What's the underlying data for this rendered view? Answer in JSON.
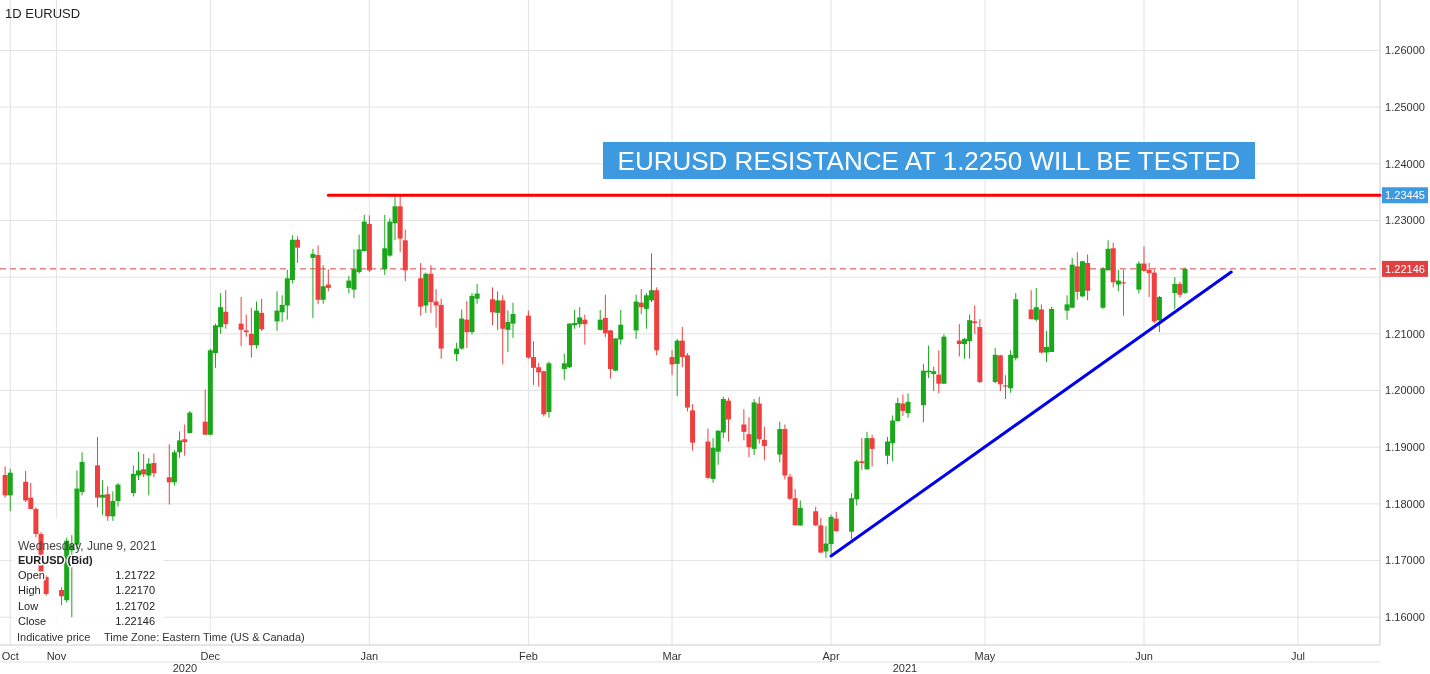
{
  "chart_data": {
    "type": "candlestick",
    "title": "1D EURUSD",
    "xlim": [
      "2020-10-21",
      "2021-07-17"
    ],
    "xticks": [
      {
        "value": "2020-10-23",
        "label": "Oct"
      },
      {
        "value": "2020-11-01",
        "label": "Nov"
      },
      {
        "value": "2020-12-01",
        "label": "Dec"
      },
      {
        "value": "2021-01-01",
        "label": "Jan"
      },
      {
        "value": "2021-02-01",
        "label": "Feb"
      },
      {
        "value": "2021-03-01",
        "label": "Mar"
      },
      {
        "value": "2021-04-01",
        "label": "Apr"
      },
      {
        "value": "2021-05-01",
        "label": "May"
      },
      {
        "value": "2021-06-01",
        "label": "Jun"
      },
      {
        "value": "2021-07-01",
        "label": "Jul"
      }
    ],
    "ylim": [
      1.1551,
      1.2689
    ],
    "yticks": [
      {
        "value": 1.16,
        "label": "1.16000"
      },
      {
        "value": 1.17,
        "label": "1.17000"
      },
      {
        "value": 1.18,
        "label": "1.18000"
      },
      {
        "value": 1.19,
        "label": "1.19000"
      },
      {
        "value": 1.2,
        "label": "1.20000"
      },
      {
        "value": 1.21,
        "label": "1.21000"
      },
      {
        "value": 1.22,
        "label": null
      },
      {
        "value": 1.23,
        "label": "1.23000"
      },
      {
        "value": 1.24,
        "label": "1.24000"
      },
      {
        "value": 1.25,
        "label": "1.25000"
      },
      {
        "value": 1.26,
        "label": "1.26000"
      }
    ],
    "grid": true,
    "x": [
      "2020-10-22",
      "2020-10-23",
      "2020-10-26",
      "2020-10-27",
      "2020-10-28",
      "2020-10-29",
      "2020-10-30",
      "2020-11-02",
      "2020-11-03",
      "2020-11-04",
      "2020-11-05",
      "2020-11-06",
      "2020-11-09",
      "2020-11-10",
      "2020-11-11",
      "2020-11-12",
      "2020-11-13",
      "2020-11-16",
      "2020-11-17",
      "2020-11-18",
      "2020-11-19",
      "2020-11-20",
      "2020-11-23",
      "2020-11-24",
      "2020-11-25",
      "2020-11-26",
      "2020-11-27",
      "2020-11-30",
      "2020-12-01",
      "2020-12-02",
      "2020-12-03",
      "2020-12-04",
      "2020-12-07",
      "2020-12-08",
      "2020-12-09",
      "2020-12-10",
      "2020-12-11",
      "2020-12-14",
      "2020-12-15",
      "2020-12-16",
      "2020-12-17",
      "2020-12-18",
      "2020-12-21",
      "2020-12-22",
      "2020-12-23",
      "2020-12-24",
      "2020-12-28",
      "2020-12-29",
      "2020-12-30",
      "2020-12-31",
      "2021-01-01",
      "2021-01-04",
      "2021-01-05",
      "2021-01-06",
      "2021-01-07",
      "2021-01-08",
      "2021-01-11",
      "2021-01-12",
      "2021-01-13",
      "2021-01-14",
      "2021-01-15",
      "2021-01-18",
      "2021-01-19",
      "2021-01-20",
      "2021-01-21",
      "2021-01-22",
      "2021-01-25",
      "2021-01-26",
      "2021-01-27",
      "2021-01-28",
      "2021-01-29",
      "2021-02-01",
      "2021-02-02",
      "2021-02-03",
      "2021-02-04",
      "2021-02-05",
      "2021-02-08",
      "2021-02-09",
      "2021-02-10",
      "2021-02-11",
      "2021-02-12",
      "2021-02-15",
      "2021-02-16",
      "2021-02-17",
      "2021-02-18",
      "2021-02-19",
      "2021-02-22",
      "2021-02-23",
      "2021-02-24",
      "2021-02-25",
      "2021-02-26",
      "2021-03-01",
      "2021-03-02",
      "2021-03-03",
      "2021-03-04",
      "2021-03-05",
      "2021-03-08",
      "2021-03-09",
      "2021-03-10",
      "2021-03-11",
      "2021-03-12",
      "2021-03-15",
      "2021-03-16",
      "2021-03-17",
      "2021-03-18",
      "2021-03-19",
      "2021-03-22",
      "2021-03-23",
      "2021-03-24",
      "2021-03-25",
      "2021-03-26",
      "2021-03-29",
      "2021-03-30",
      "2021-03-31",
      "2021-04-01",
      "2021-04-02",
      "2021-04-05",
      "2021-04-06",
      "2021-04-07",
      "2021-04-08",
      "2021-04-09",
      "2021-04-12",
      "2021-04-13",
      "2021-04-14",
      "2021-04-15",
      "2021-04-16",
      "2021-04-19",
      "2021-04-20",
      "2021-04-21",
      "2021-04-22",
      "2021-04-23",
      "2021-04-26",
      "2021-04-27",
      "2021-04-28",
      "2021-04-29",
      "2021-04-30",
      "2021-05-03",
      "2021-05-04",
      "2021-05-05",
      "2021-05-06",
      "2021-05-07",
      "2021-05-10",
      "2021-05-11",
      "2021-05-12",
      "2021-05-13",
      "2021-05-14",
      "2021-05-17",
      "2021-05-18",
      "2021-05-19",
      "2021-05-20",
      "2021-05-21",
      "2021-05-24",
      "2021-05-25",
      "2021-05-26",
      "2021-05-27",
      "2021-05-28",
      "2021-05-31",
      "2021-06-01",
      "2021-06-02",
      "2021-06-03",
      "2021-06-04",
      "2021-06-07",
      "2021-06-08",
      "2021-06-09"
    ],
    "ohlc": [
      [
        1.1851,
        1.1866,
        1.1811,
        1.1815
      ],
      [
        1.1815,
        1.1862,
        1.1787,
        1.1855
      ],
      [
        1.1839,
        1.1858,
        1.1803,
        1.1806
      ],
      [
        1.1811,
        1.1837,
        1.1791,
        1.1791
      ],
      [
        1.1791,
        1.1794,
        1.1741,
        1.1747
      ],
      [
        1.1747,
        1.175,
        1.1668,
        1.1671
      ],
      [
        1.1671,
        1.1674,
        1.1638,
        1.1641
      ],
      [
        1.1648,
        1.1653,
        1.1621,
        1.1637
      ],
      [
        1.163,
        1.174,
        1.1626,
        1.1735
      ],
      [
        1.1718,
        1.1745,
        1.16,
        1.1728
      ],
      [
        1.1728,
        1.1859,
        1.172,
        1.1827
      ],
      [
        1.1821,
        1.1891,
        1.1815,
        1.1874
      ],
      [
        1.1868,
        1.1918,
        1.1794,
        1.1811
      ],
      [
        1.1811,
        1.1842,
        1.178,
        1.1816
      ],
      [
        1.1817,
        1.1831,
        1.177,
        1.1778
      ],
      [
        1.1778,
        1.1822,
        1.177,
        1.1805
      ],
      [
        1.1805,
        1.1837,
        1.1795,
        1.1834
      ],
      [
        1.1819,
        1.1868,
        1.1813,
        1.1853
      ],
      [
        1.185,
        1.1892,
        1.1842,
        1.1859
      ],
      [
        1.1861,
        1.1888,
        1.1847,
        1.1852
      ],
      [
        1.185,
        1.1881,
        1.1815,
        1.1871
      ],
      [
        1.1872,
        1.1889,
        1.1847,
        1.1854
      ],
      [
        1.1847,
        1.1905,
        1.1799,
        1.1838
      ],
      [
        1.1838,
        1.1895,
        1.1832,
        1.1891
      ],
      [
        1.1891,
        1.1928,
        1.1881,
        1.1912
      ],
      [
        1.1914,
        1.194,
        1.1885,
        1.1909
      ],
      [
        1.1925,
        1.1964,
        1.1924,
        1.1961
      ],
      [
        1.1945,
        1.2002,
        1.1922,
        1.1922
      ],
      [
        1.1922,
        1.2074,
        1.1921,
        1.2071
      ],
      [
        1.2066,
        1.2118,
        1.204,
        1.2115
      ],
      [
        1.2112,
        1.2172,
        1.21,
        1.2147
      ],
      [
        1.2139,
        1.2177,
        1.2109,
        1.2117
      ],
      [
        1.2118,
        1.2165,
        1.2078,
        1.2107
      ],
      [
        1.2106,
        1.2134,
        1.2095,
        1.2103
      ],
      [
        1.21,
        1.2146,
        1.2058,
        1.208
      ],
      [
        1.208,
        1.2157,
        1.2074,
        1.2141
      ],
      [
        1.2137,
        1.2162,
        1.2105,
        1.2108
      ],
      [
        1.2122,
        1.2175,
        1.2105,
        1.2141
      ],
      [
        1.2138,
        1.2168,
        1.2121,
        1.2151
      ],
      [
        1.215,
        1.2213,
        1.2125,
        1.2198
      ],
      [
        1.2195,
        1.2274,
        1.2189,
        1.2266
      ],
      [
        1.2266,
        1.2272,
        1.2225,
        1.2252
      ],
      [
        1.2234,
        1.225,
        1.2128,
        1.2241
      ],
      [
        1.2239,
        1.2256,
        1.2152,
        1.216
      ],
      [
        1.216,
        1.2221,
        1.2153,
        1.2184
      ],
      [
        1.2187,
        1.2214,
        1.2175,
        1.2181
      ],
      [
        1.2181,
        1.2202,
        1.2171,
        1.2194
      ],
      [
        1.2178,
        1.2249,
        1.2163,
        1.2214
      ],
      [
        1.2209,
        1.2275,
        1.2206,
        1.2249
      ],
      [
        1.2246,
        1.231,
        1.2246,
        1.2298
      ],
      [
        1.2294,
        1.2309,
        1.2209,
        1.2212
      ],
      [
        1.2214,
        1.231,
        1.2204,
        1.2251
      ],
      [
        1.2238,
        1.2304,
        1.2236,
        1.2298
      ],
      [
        1.2295,
        1.2345,
        1.2265,
        1.2325
      ],
      [
        1.2325,
        1.2344,
        1.2244,
        1.2268
      ],
      [
        1.2265,
        1.2284,
        1.2193,
        1.2212
      ],
      [
        1.2198,
        1.2225,
        1.2132,
        1.2148
      ],
      [
        1.215,
        1.2208,
        1.2137,
        1.2206
      ],
      [
        1.2206,
        1.2221,
        1.2137,
        1.2156
      ],
      [
        1.2157,
        1.2179,
        1.2111,
        1.215
      ],
      [
        1.2151,
        1.2162,
        1.2056,
        1.2074
      ],
      [
        1.2064,
        1.2084,
        1.2052,
        1.2074
      ],
      [
        1.2074,
        1.2143,
        1.2072,
        1.2127
      ],
      [
        1.2125,
        1.2158,
        1.2075,
        1.2103
      ],
      [
        1.2103,
        1.2172,
        1.2099,
        1.2167
      ],
      [
        1.2162,
        1.2188,
        1.2153,
        1.2171
      ],
      [
        1.2161,
        1.2182,
        1.2115,
        1.2138
      ],
      [
        1.2137,
        1.2175,
        1.2107,
        1.2159
      ],
      [
        1.2159,
        1.2168,
        1.2046,
        1.2109
      ],
      [
        1.2107,
        1.2141,
        1.2068,
        1.2121
      ],
      [
        1.2118,
        1.2155,
        1.2093,
        1.2135
      ],
      [
        1.2132,
        1.2141,
        1.2056,
        1.2058
      ],
      [
        1.2059,
        1.2087,
        1.201,
        1.204
      ],
      [
        1.2041,
        1.2049,
        1.2007,
        1.2032
      ],
      [
        1.2034,
        1.2035,
        1.1954,
        1.1958
      ],
      [
        1.1962,
        1.2051,
        1.1952,
        1.2048
      ],
      [
        1.2038,
        1.2065,
        1.2019,
        1.2048
      ],
      [
        1.2041,
        1.2119,
        1.204,
        1.2118
      ],
      [
        1.2115,
        1.2142,
        1.2109,
        1.2119
      ],
      [
        1.2117,
        1.2147,
        1.2111,
        1.2129
      ],
      [
        1.2125,
        1.2134,
        1.2081,
        1.2117
      ],
      [
        1.2107,
        1.2142,
        1.2106,
        1.2125
      ],
      [
        1.2128,
        1.2169,
        1.2094,
        1.2101
      ],
      [
        1.2106,
        1.2107,
        1.2021,
        1.2038
      ],
      [
        1.2035,
        1.2092,
        1.2034,
        1.2092
      ],
      [
        1.209,
        1.2142,
        1.2081,
        1.2116
      ],
      [
        1.2106,
        1.2169,
        1.2091,
        1.2157
      ],
      [
        1.2155,
        1.2179,
        1.2135,
        1.2147
      ],
      [
        1.2144,
        1.2172,
        1.2109,
        1.2168
      ],
      [
        1.2159,
        1.2242,
        1.2156,
        1.2177
      ],
      [
        1.2177,
        1.2182,
        1.2062,
        1.2071
      ],
      [
        1.2059,
        1.2071,
        1.2027,
        1.2046
      ],
      [
        1.2047,
        1.2091,
        1.199,
        1.2088
      ],
      [
        1.2088,
        1.2112,
        1.2041,
        1.2059
      ],
      [
        1.2062,
        1.2066,
        1.1963,
        1.197
      ],
      [
        1.1965,
        1.1976,
        1.1894,
        1.1908
      ],
      [
        1.191,
        1.1933,
        1.1844,
        1.1846
      ],
      [
        1.1844,
        1.1916,
        1.1837,
        1.1899
      ],
      [
        1.1892,
        1.193,
        1.1869,
        1.1929
      ],
      [
        1.1926,
        1.1989,
        1.1916,
        1.1985
      ],
      [
        1.1982,
        1.1987,
        1.191,
        1.1949
      ],
      [
        1.194,
        1.1967,
        1.1912,
        1.1927
      ],
      [
        1.1923,
        1.1953,
        1.1882,
        1.19
      ],
      [
        1.1897,
        1.1985,
        1.1886,
        1.1979
      ],
      [
        1.1977,
        1.1989,
        1.1906,
        1.1914
      ],
      [
        1.1913,
        1.1936,
        1.1877,
        1.1902
      ],
      [
        1.1887,
        1.1945,
        1.1873,
        1.1932
      ],
      [
        1.1932,
        1.194,
        1.1843,
        1.185
      ],
      [
        1.1848,
        1.1853,
        1.1807,
        1.1809
      ],
      [
        1.181,
        1.1826,
        1.1762,
        1.1762
      ],
      [
        1.1762,
        1.1806,
        1.1761,
        1.1793
      ],
      [
        1.1787,
        1.1795,
        1.1761,
        1.1762
      ],
      [
        1.1762,
        1.1775,
        1.1714,
        1.1714
      ],
      [
        1.1716,
        1.1761,
        1.1705,
        1.173
      ],
      [
        1.1729,
        1.1781,
        1.1711,
        1.1777
      ],
      [
        1.1774,
        1.1786,
        1.175,
        1.1752
      ],
      [
        1.1751,
        1.1819,
        1.1738,
        1.181
      ],
      [
        1.1808,
        1.1878,
        1.1797,
        1.1875
      ],
      [
        1.1875,
        1.1916,
        1.186,
        1.1872
      ],
      [
        1.1861,
        1.1927,
        1.186,
        1.1916
      ],
      [
        1.1916,
        1.1922,
        1.1866,
        1.1897
      ],
      [
        1.1885,
        1.1918,
        1.187,
        1.191
      ],
      [
        1.1907,
        1.1956,
        1.1875,
        1.1947
      ],
      [
        1.1946,
        1.1987,
        1.1945,
        1.1978
      ],
      [
        1.1977,
        1.1993,
        1.1955,
        1.1964
      ],
      [
        1.196,
        1.1995,
        1.1952,
        1.198
      ],
      [
        1.1974,
        1.2047,
        1.1944,
        1.2035
      ],
      [
        1.2032,
        1.2079,
        1.2022,
        1.2035
      ],
      [
        1.2029,
        1.2042,
        1.1999,
        1.2034
      ],
      [
        1.2028,
        1.2071,
        1.1995,
        1.2012
      ],
      [
        1.2012,
        1.2099,
        1.2012,
        1.2095
      ],
      [
        1.2088,
        1.2117,
        1.206,
        1.2082
      ],
      [
        1.2082,
        1.2093,
        1.2056,
        1.2091
      ],
      [
        1.2087,
        1.2134,
        1.2056,
        1.2124
      ],
      [
        1.2122,
        1.215,
        1.21,
        1.2119
      ],
      [
        1.2112,
        1.2126,
        1.2013,
        1.2015
      ],
      [
        1.2015,
        1.2075,
        1.2013,
        1.2063
      ],
      [
        1.2062,
        1.2063,
        1.1999,
        1.2011
      ],
      [
        1.2009,
        1.2027,
        1.1985,
        1.2007
      ],
      [
        1.2004,
        1.2071,
        1.1996,
        1.2063
      ],
      [
        1.2057,
        1.2172,
        1.2053,
        1.2161
      ],
      [
        1.2143,
        1.2177,
        1.2126,
        1.2126
      ],
      [
        1.2125,
        1.2181,
        1.2122,
        1.2147
      ],
      [
        1.2143,
        1.2152,
        1.2065,
        1.2067
      ],
      [
        1.2067,
        1.2105,
        1.205,
        1.2077
      ],
      [
        1.2068,
        1.2148,
        1.2068,
        1.2144
      ],
      [
        1.2141,
        1.2168,
        1.2125,
        1.2152
      ],
      [
        1.2146,
        1.2234,
        1.2146,
        1.2222
      ],
      [
        1.2219,
        1.2244,
        1.216,
        1.2174
      ],
      [
        1.2166,
        1.2229,
        1.2165,
        1.2228
      ],
      [
        1.2225,
        1.224,
        1.2159,
        1.2176
      ],
      [
        1.2146,
        1.2218,
        1.2144,
        1.2215
      ],
      [
        1.2212,
        1.2265,
        1.2212,
        1.225
      ],
      [
        1.2251,
        1.2261,
        1.2182,
        1.2191
      ],
      [
        1.2187,
        1.2213,
        1.2175,
        1.2194
      ],
      [
        1.2191,
        1.2213,
        1.2132,
        1.2189
      ],
      [
        1.2178,
        1.2228,
        1.2171,
        1.2224
      ],
      [
        1.2224,
        1.2254,
        1.221,
        1.2211
      ],
      [
        1.2213,
        1.2225,
        1.2165,
        1.2207
      ],
      [
        1.2208,
        1.2213,
        1.2119,
        1.2122
      ],
      [
        1.2124,
        1.2167,
        1.2103,
        1.2165
      ],
      [
        1.2172,
        1.22,
        1.2144,
        1.2188
      ],
      [
        1.2188,
        1.2192,
        1.2164,
        1.2169
      ],
      [
        1.21722,
        1.2217,
        1.21702,
        1.22146
      ]
    ],
    "series": [
      {
        "type": "line",
        "color": "#ff0000",
        "x": [
          "2020-12-24",
          "2021-07-17"
        ],
        "values": [
          1.23445,
          1.23445
        ]
      },
      {
        "type": "line",
        "color": "#0000ee",
        "x": [
          "2021-04-01",
          "2021-06-18"
        ],
        "values": [
          1.1708,
          1.2209
        ]
      }
    ],
    "ref_lines": [
      {
        "axis": "y",
        "value": 1.22146,
        "label": "1.22146",
        "color": "#e04040",
        "line_style": "dashed"
      }
    ],
    "annotations": [
      "EURUSD RESISTANCE AT 1.2250 WILL BE TESTED",
      "1.23445",
      "Wednesday, June 9, 2021",
      "EURUSD (Bid)",
      "Open",
      "1.21722",
      "High",
      "1.22170",
      "Low",
      "1.21702",
      "Close",
      "1.22146",
      "Indicative price",
      "Time Zone: Eastern Time (US & Canada)",
      "2020",
      "2021"
    ]
  }
}
